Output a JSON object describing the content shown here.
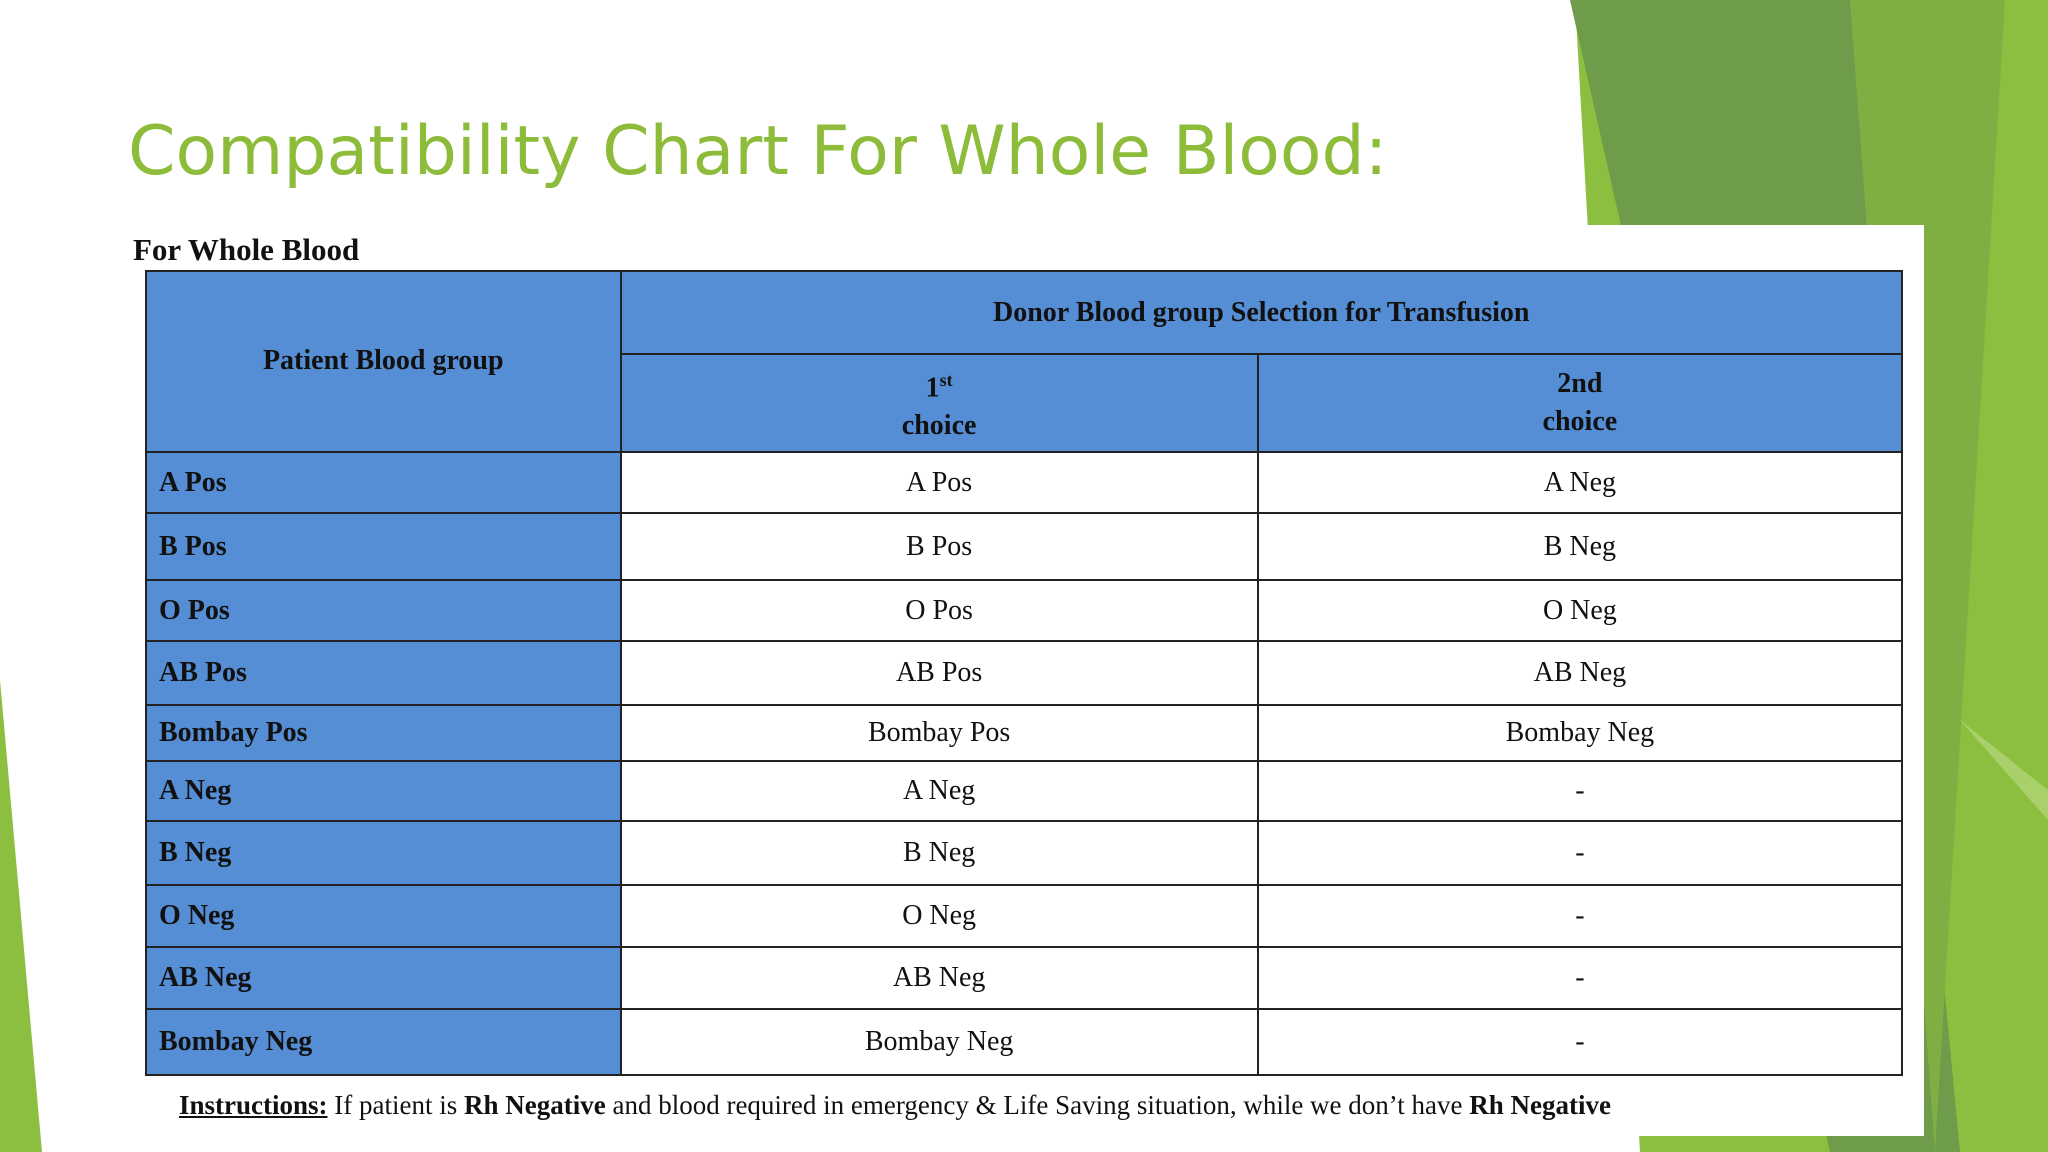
{
  "title": "Compatibility Chart For Whole Blood:",
  "caption": "For Whole Blood",
  "table": {
    "header": {
      "patient": "Patient Blood group",
      "donor": "Donor Blood group Selection for Transfusion",
      "first": {
        "number": "1",
        "suffix": "st",
        "word": "choice"
      },
      "second": {
        "number": "2nd",
        "word": "choice"
      }
    },
    "rows": [
      [
        "A Pos",
        "A Pos",
        "A Neg"
      ],
      [
        "B Pos",
        "B Pos",
        "B Neg"
      ],
      [
        "O Pos",
        "O Pos",
        "O Neg"
      ],
      [
        "AB Pos",
        "AB Pos",
        "AB Neg"
      ],
      [
        "Bombay Pos",
        "Bombay Pos",
        "Bombay Neg"
      ],
      [
        "A Neg",
        "A Neg",
        "-"
      ],
      [
        "B Neg",
        "B Neg",
        "-"
      ],
      [
        "O Neg",
        "O Neg",
        "-"
      ],
      [
        "AB Neg",
        "AB Neg",
        "-"
      ],
      [
        "Bombay Neg",
        "Bombay Neg",
        "-"
      ]
    ]
  },
  "instructions": [
    "Instructions:",
    " If patient is ",
    "Rh Negative",
    " and blood required in emergency & Life Saving situation, while we don’t have ",
    "Rh Negative"
  ]
}
